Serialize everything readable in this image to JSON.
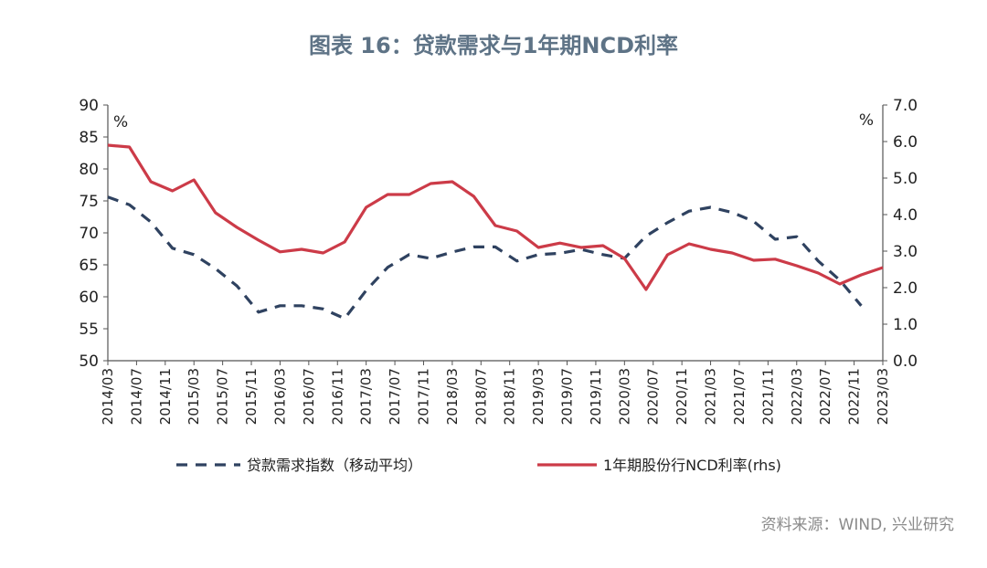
{
  "title": "图表 16：贷款需求与1年期NCD利率",
  "source": "资料来源：WIND, 兴业研究",
  "colors": {
    "demand": "#2f4260",
    "ncd": "#cc3b48",
    "axis": "#555555",
    "title": "#5e7386"
  },
  "chart_data": {
    "type": "line",
    "left_unit": "%",
    "right_unit": "%",
    "y_left": {
      "min": 50,
      "max": 90,
      "ticks": [
        "50",
        "55",
        "60",
        "65",
        "70",
        "75",
        "80",
        "85",
        "90"
      ]
    },
    "y_right": {
      "min": 0,
      "max": 7,
      "ticks": [
        "0.0",
        "1.0",
        "2.0",
        "3.0",
        "4.0",
        "5.0",
        "6.0",
        "7.0"
      ]
    },
    "x_ticks": [
      "2014/03",
      "2014/07",
      "2014/11",
      "2015/03",
      "2015/07",
      "2015/11",
      "2016/03",
      "2016/07",
      "2016/11",
      "2017/03",
      "2017/07",
      "2017/11",
      "2018/03",
      "2018/07",
      "2018/11",
      "2019/03",
      "2019/07",
      "2019/11",
      "2020/03",
      "2020/07",
      "2020/11",
      "2021/03",
      "2021/07",
      "2021/11",
      "2022/03",
      "2022/07",
      "2022/11",
      "2023/03"
    ],
    "grid": false,
    "legend_position": "bottom",
    "series": [
      {
        "name": "贷款需求指数（移动平均）",
        "axis": "left",
        "style": "dashed",
        "points": [
          [
            "2014/03",
            75.6
          ],
          [
            "2014/06",
            74.4
          ],
          [
            "2014/09",
            71.7
          ],
          [
            "2014/12",
            67.6
          ],
          [
            "2015/03",
            66.6
          ],
          [
            "2015/06",
            64.4
          ],
          [
            "2015/09",
            61.7
          ],
          [
            "2015/12",
            57.6
          ],
          [
            "2016/03",
            58.6
          ],
          [
            "2016/06",
            58.6
          ],
          [
            "2016/09",
            58.1
          ],
          [
            "2016/12",
            56.6
          ],
          [
            "2017/03",
            61.0
          ],
          [
            "2017/06",
            64.6
          ],
          [
            "2017/09",
            66.6
          ],
          [
            "2017/12",
            66.0
          ],
          [
            "2018/03",
            67.0
          ],
          [
            "2018/06",
            67.8
          ],
          [
            "2018/09",
            67.8
          ],
          [
            "2018/12",
            65.6
          ],
          [
            "2019/03",
            66.6
          ],
          [
            "2019/06",
            66.8
          ],
          [
            "2019/09",
            67.4
          ],
          [
            "2019/12",
            66.6
          ],
          [
            "2020/03",
            66.0
          ],
          [
            "2020/06",
            69.5
          ],
          [
            "2020/09",
            71.6
          ],
          [
            "2020/12",
            73.4
          ],
          [
            "2021/03",
            74.0
          ],
          [
            "2021/06",
            73.2
          ],
          [
            "2021/09",
            71.8
          ],
          [
            "2021/12",
            69.0
          ],
          [
            "2022/03",
            69.4
          ],
          [
            "2022/06",
            65.6
          ],
          [
            "2022/09",
            62.6
          ],
          [
            "2022/12",
            58.6
          ]
        ]
      },
      {
        "name": "1年期股份行NCD利率(rhs)",
        "axis": "right",
        "style": "solid",
        "points": [
          [
            "2014/03",
            5.9
          ],
          [
            "2014/06",
            5.85
          ],
          [
            "2014/09",
            4.9
          ],
          [
            "2014/12",
            4.65
          ],
          [
            "2015/03",
            4.95
          ],
          [
            "2015/06",
            4.05
          ],
          [
            "2015/09",
            3.65
          ],
          [
            "2015/12",
            3.3
          ],
          [
            "2016/03",
            2.98
          ],
          [
            "2016/06",
            3.05
          ],
          [
            "2016/09",
            2.95
          ],
          [
            "2016/12",
            3.25
          ],
          [
            "2017/03",
            4.2
          ],
          [
            "2017/06",
            4.55
          ],
          [
            "2017/09",
            4.55
          ],
          [
            "2017/12",
            4.85
          ],
          [
            "2018/03",
            4.9
          ],
          [
            "2018/06",
            4.5
          ],
          [
            "2018/09",
            3.7
          ],
          [
            "2018/12",
            3.55
          ],
          [
            "2019/03",
            3.1
          ],
          [
            "2019/06",
            3.22
          ],
          [
            "2019/09",
            3.1
          ],
          [
            "2019/12",
            3.15
          ],
          [
            "2020/03",
            2.8
          ],
          [
            "2020/06",
            1.95
          ],
          [
            "2020/09",
            2.9
          ],
          [
            "2020/12",
            3.2
          ],
          [
            "2021/03",
            3.05
          ],
          [
            "2021/06",
            2.95
          ],
          [
            "2021/09",
            2.75
          ],
          [
            "2021/12",
            2.78
          ],
          [
            "2022/03",
            2.6
          ],
          [
            "2022/06",
            2.4
          ],
          [
            "2022/09",
            2.1
          ],
          [
            "2022/12",
            2.35
          ],
          [
            "2023/03",
            2.55
          ]
        ]
      }
    ]
  }
}
